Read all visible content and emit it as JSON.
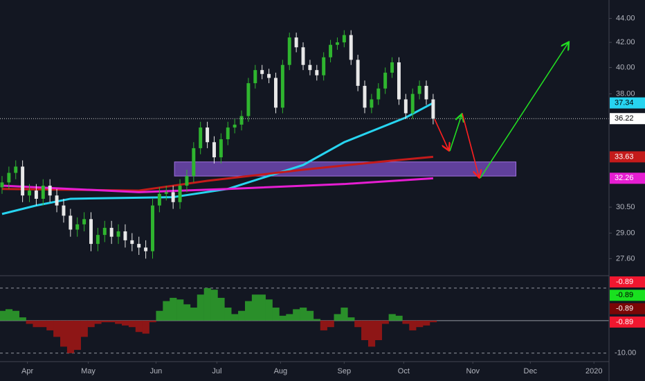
{
  "chart_data": {
    "type": "candlestick",
    "log_scale": true,
    "grid": false,
    "up_color": "#2fb52f",
    "down_color": "#e8e8e8",
    "xlim": [
      -0.3,
      88.7
    ],
    "xticks": [
      {
        "value": 3.7,
        "label": "Apr"
      },
      {
        "value": 12.6,
        "label": "May"
      },
      {
        "value": 22.5,
        "label": "Jun"
      },
      {
        "value": 31.4,
        "label": "Jul"
      },
      {
        "value": 40.7,
        "label": "Aug"
      },
      {
        "value": 50,
        "label": "Sep"
      },
      {
        "value": 58.7,
        "label": "Oct"
      },
      {
        "value": 68.8,
        "label": "Nov"
      },
      {
        "value": 77.2,
        "label": "Dec"
      },
      {
        "value": 86.5,
        "label": "2020"
      }
    ],
    "ylim": [
      26.7,
      45.6
    ],
    "yticks": [
      {
        "value": 44,
        "label": "44.00"
      },
      {
        "value": 42,
        "label": "42.00"
      },
      {
        "value": 40,
        "label": "40.00"
      },
      {
        "value": 38,
        "label": "38.00"
      },
      {
        "value": 30.5,
        "label": "30.50"
      },
      {
        "value": 29,
        "label": "29.00"
      },
      {
        "value": 27.6,
        "label": "27.60"
      }
    ],
    "open": [
      31.7,
      32.0,
      32.6,
      33.0,
      31.2,
      31.5,
      31.0,
      31.8,
      31.2,
      30.6,
      30.0,
      29.2,
      29.5,
      29.8,
      28.4,
      28.9,
      29.3,
      28.8,
      29.1,
      28.6,
      28.4,
      28.2,
      28.0,
      30.6,
      31.3,
      31.4,
      30.8,
      31.8,
      32.4,
      34.2,
      35.6,
      34.6,
      33.6,
      34.8,
      35.6,
      35.8,
      36.4,
      38.8,
      39.8,
      39.5,
      39.2,
      37.0,
      40.2,
      42.4,
      41.6,
      40.2,
      39.8,
      39.4,
      40.8,
      41.8,
      42.0,
      42.6,
      40.6,
      38.6,
      37.0,
      37.6,
      38.4,
      39.6,
      40.4,
      37.6,
      36.6,
      38.0,
      38.6,
      37.6
    ],
    "high": [
      32.4,
      33.0,
      33.4,
      33.4,
      31.9,
      31.9,
      32.2,
      32.2,
      31.6,
      31.0,
      30.4,
      29.9,
      30.2,
      30.2,
      29.3,
      29.7,
      29.7,
      29.5,
      29.5,
      29.0,
      28.8,
      28.6,
      31.0,
      31.7,
      31.8,
      31.8,
      32.2,
      32.8,
      34.6,
      36.0,
      36.0,
      35.0,
      35.2,
      36.0,
      36.2,
      36.8,
      39.2,
      40.2,
      40.2,
      39.9,
      39.6,
      40.6,
      42.8,
      42.8,
      42.0,
      40.6,
      40.2,
      41.2,
      42.2,
      42.4,
      43.0,
      43.0,
      41.0,
      39.0,
      38.0,
      38.8,
      40.0,
      40.8,
      40.8,
      38.0,
      38.4,
      39.0,
      39.0,
      38.0
    ],
    "low": [
      31.3,
      31.6,
      32.2,
      30.8,
      30.8,
      30.6,
      30.6,
      30.8,
      30.2,
      29.6,
      28.8,
      28.8,
      29.1,
      28.0,
      28.0,
      28.5,
      28.4,
      28.4,
      28.2,
      28.0,
      27.8,
      27.6,
      27.6,
      30.2,
      30.9,
      30.4,
      30.4,
      31.4,
      32.0,
      33.8,
      34.2,
      33.2,
      33.2,
      34.4,
      35.2,
      35.4,
      36.0,
      38.4,
      39.1,
      38.8,
      36.6,
      36.6,
      39.8,
      41.2,
      39.8,
      39.4,
      39.0,
      39.0,
      40.4,
      41.4,
      41.6,
      40.2,
      38.2,
      36.6,
      36.6,
      37.2,
      38.0,
      39.2,
      37.2,
      36.2,
      36.2,
      37.6,
      37.2,
      35.82
    ],
    "close": [
      32.0,
      32.6,
      33.0,
      31.2,
      31.5,
      31.0,
      31.8,
      31.2,
      30.6,
      30.0,
      29.2,
      29.5,
      29.8,
      28.4,
      28.9,
      29.3,
      28.8,
      29.1,
      28.6,
      28.4,
      28.2,
      28.0,
      30.6,
      31.3,
      31.4,
      30.8,
      31.8,
      32.4,
      34.2,
      35.6,
      34.6,
      33.6,
      34.8,
      35.6,
      35.8,
      36.4,
      38.8,
      39.8,
      39.5,
      39.2,
      37.0,
      40.2,
      42.4,
      41.6,
      40.2,
      39.8,
      39.4,
      40.8,
      41.8,
      42.0,
      42.6,
      40.6,
      38.6,
      37.0,
      37.6,
      38.4,
      39.6,
      40.4,
      37.6,
      36.6,
      38.0,
      38.6,
      37.6,
      36.22
    ],
    "lines": [
      {
        "color": "#27d4f0",
        "label_text": "#000000",
        "x": [
          0,
          5,
          10,
          25,
          33,
          44,
          50,
          59,
          63
        ],
        "values": [
          30.1,
          30.6,
          31.0,
          31.1,
          31.6,
          33.1,
          34.6,
          36.3,
          37.34
        ]
      },
      {
        "color": "#c41b1b",
        "label_text": "#ffffff",
        "x": [
          0,
          20,
          30,
          44,
          55,
          63
        ],
        "values": [
          31.6,
          31.5,
          32.1,
          32.8,
          33.3,
          33.63
        ]
      },
      {
        "color": "#e61ed2",
        "label_text": "#ffffff",
        "x": [
          0,
          20,
          33,
          50,
          63
        ],
        "values": [
          31.8,
          31.4,
          31.6,
          31.9,
          32.26
        ]
      }
    ],
    "zone": {
      "color": "#7b4fc4",
      "x": [
        25.2,
        75.1
      ],
      "y": [
        32.4,
        33.3
      ]
    },
    "oscillator": {
      "ylim": [
        -12.6,
        13.8
      ],
      "levels": [
        10,
        0,
        -10
      ],
      "yticks": [
        {
          "value": -10,
          "label": "-10.00"
        }
      ],
      "pos_color": "#2a8f2a",
      "neg_color": "#8e1616",
      "values": [
        3,
        3.5,
        3,
        1,
        -1,
        -2,
        -2,
        -3,
        -5,
        -8,
        -10,
        -9,
        -5,
        -2,
        -1,
        -0.5,
        -0.5,
        -1,
        -1.5,
        -2,
        -3.5,
        -4,
        -0.5,
        3,
        6,
        7,
        6.5,
        5,
        4,
        8,
        10,
        9.5,
        7,
        4,
        2,
        3,
        6,
        8,
        8,
        6.5,
        4,
        1.5,
        2,
        3.5,
        4,
        3,
        0.5,
        -3,
        -2,
        2,
        4,
        1,
        -2,
        -6,
        -8,
        -6,
        -1,
        2,
        1.5,
        -1,
        -3,
        -2,
        -1.5,
        -0.5
      ],
      "readouts": [
        {
          "value": -0.89,
          "color": "#f0172f",
          "text": "#ffffff"
        },
        {
          "value": -0.89,
          "color": "#19e01f",
          "text": "#000000"
        },
        {
          "value": -0.89,
          "color": "#7a0606",
          "text": "#ffffff"
        },
        {
          "value": -0.89,
          "color": "#f0172f",
          "text": "#ffffff"
        }
      ]
    }
  }
}
